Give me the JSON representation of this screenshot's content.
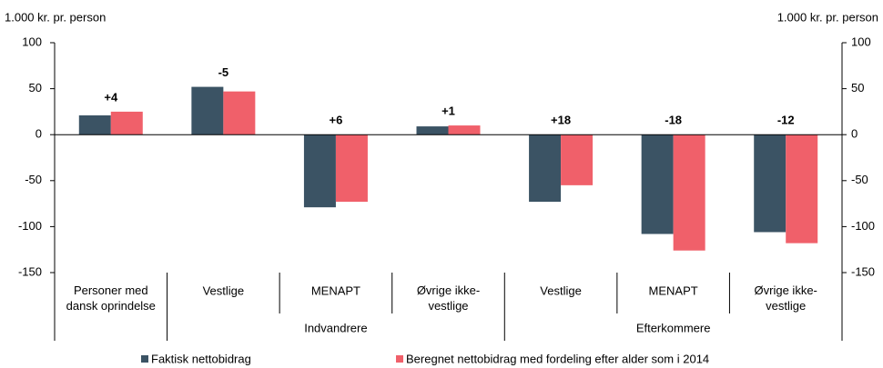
{
  "chart_data": {
    "type": "bar",
    "ylabel": "1.000 kr. pr. person",
    "y2label": "1.000 kr. pr. person",
    "categories": [
      "Personer med\ndansk oprindelse",
      "Vestlige",
      "MENAPT",
      "Øvrige ikke-\nvestlige",
      "Vestlige",
      "MENAPT",
      "Øvrige ikke-\nvestlige"
    ],
    "category_groups": [
      null,
      "Indvandrere",
      "Indvandrere",
      "Indvandrere",
      "Efterkommere",
      "Efterkommere",
      "Efterkommere"
    ],
    "annotations": [
      "+4",
      "-5",
      "+6",
      "+1",
      "+18",
      "-18",
      "-12"
    ],
    "series": [
      {
        "name": "Faktisk nettobidrag",
        "color": "#3b5364",
        "values": [
          21,
          52,
          -79,
          9,
          -73,
          -108,
          -106
        ]
      },
      {
        "name": "Beregnet nettobidrag med fordeling efter alder som i 2014",
        "color": "#f0606a",
        "values": [
          25,
          47,
          -73,
          10,
          -55,
          -126,
          -118
        ]
      }
    ],
    "ylim": [
      -150,
      100
    ],
    "yticks": [
      -150,
      -100,
      -50,
      0,
      50,
      100
    ],
    "y2lim": [
      -150,
      100
    ],
    "y2ticks": [
      -150,
      -100,
      -50,
      0,
      50,
      100
    ]
  }
}
